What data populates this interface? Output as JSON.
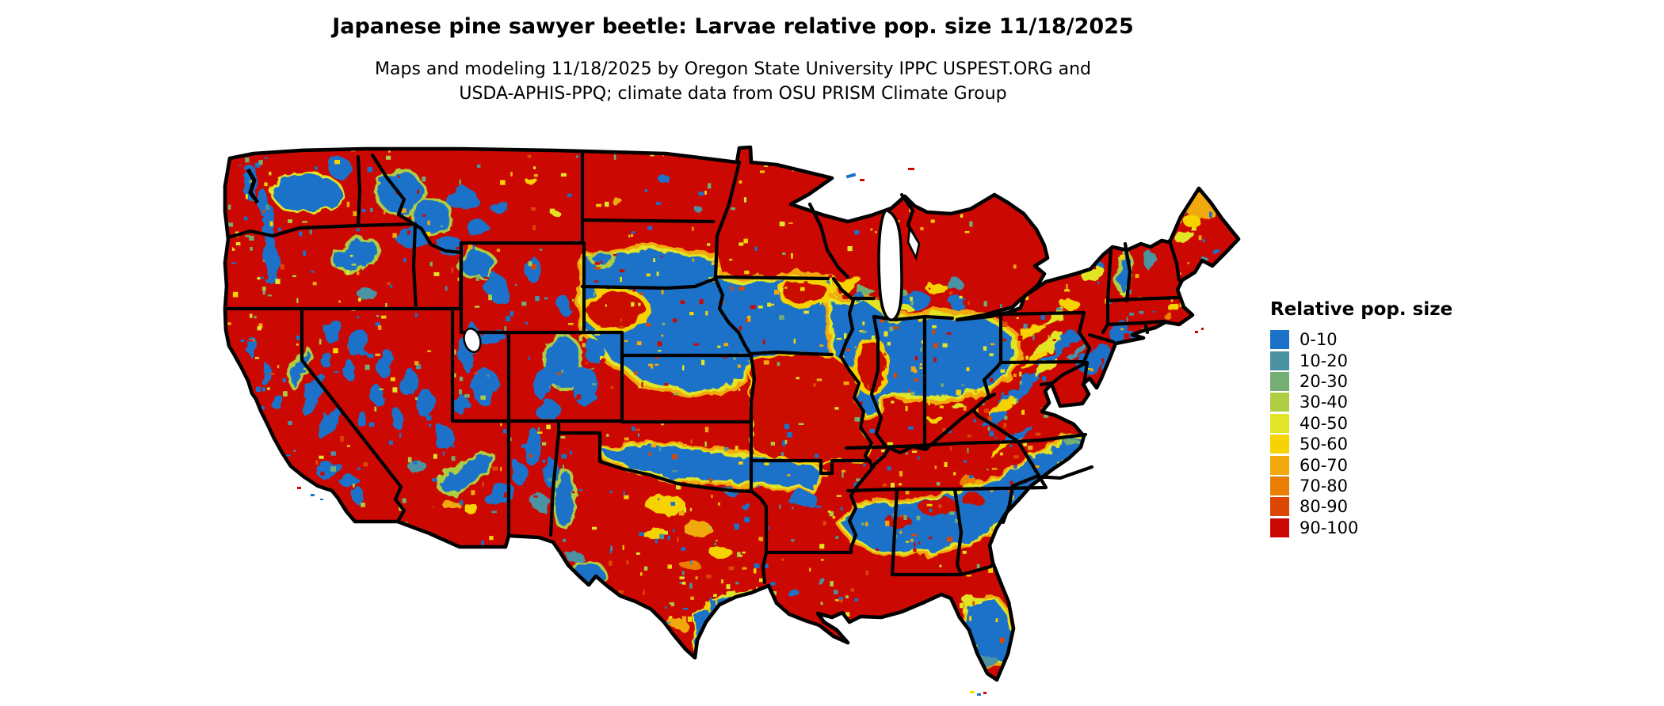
{
  "title": "Japanese pine sawyer beetle: Larvae relative pop. size 11/18/2025",
  "subtitle": {
    "line1": "Maps and modeling 11/18/2025 by Oregon State University IPPC USPEST.ORG and",
    "line2": "USDA-APHIS-PPQ; climate data from OSU PRISM Climate Group"
  },
  "legend": {
    "title": "Relative pop. size",
    "items": [
      {
        "label": "0-10",
        "color": "#1b72c8"
      },
      {
        "label": "10-20",
        "color": "#4b92a2"
      },
      {
        "label": "20-30",
        "color": "#74ae73"
      },
      {
        "label": "30-40",
        "color": "#afcd43"
      },
      {
        "label": "40-50",
        "color": "#e2e426"
      },
      {
        "label": "50-60",
        "color": "#f6d303"
      },
      {
        "label": "60-70",
        "color": "#f2a90d"
      },
      {
        "label": "70-80",
        "color": "#ea7e03"
      },
      {
        "label": "80-90",
        "color": "#dc4703"
      },
      {
        "label": "90-100",
        "color": "#cb0902"
      }
    ]
  },
  "map": {
    "kind": "raster choropleth of contiguous United States",
    "state_border_color": "#000000",
    "water_color": "#ffffff",
    "dominant_high_value_color": "#cb0902",
    "dominant_low_value_color": "#1b72c8"
  }
}
